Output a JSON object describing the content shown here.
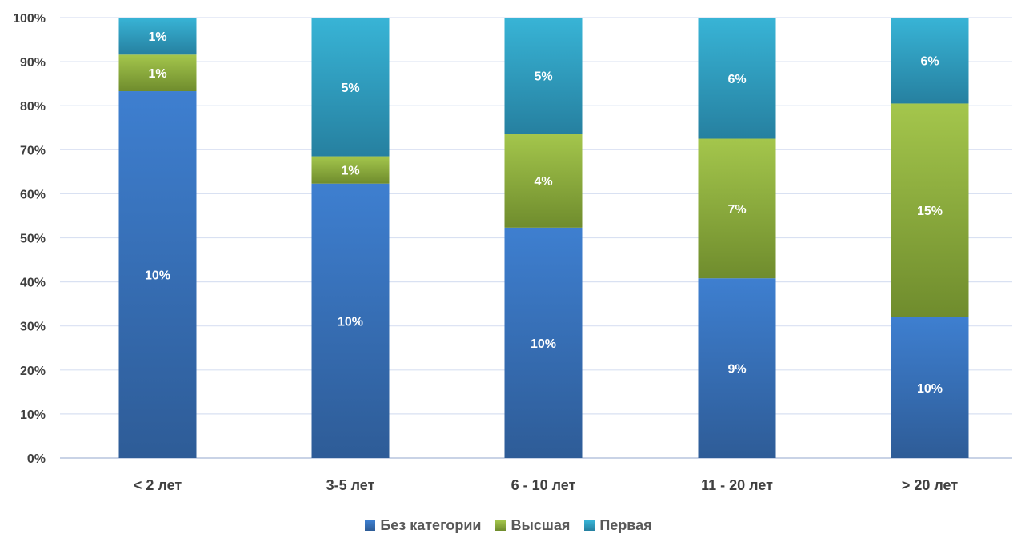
{
  "chart_data": {
    "type": "bar",
    "stacked": true,
    "percent_stacked": true,
    "categories": [
      "< 2 лет",
      "3-5 лет",
      "6 - 10 лет",
      "11 - 20 лет",
      "> 20 лет"
    ],
    "series": [
      {
        "name": "Без категории",
        "color_top": "#3E7FD0",
        "color_bottom": "#2E5C97",
        "shares": [
          0.833,
          0.623,
          0.523,
          0.408,
          0.32
        ],
        "labels": [
          "10%",
          "10%",
          "10%",
          "9%",
          "10%"
        ]
      },
      {
        "name": "Высшая",
        "color_top": "#A4C64C",
        "color_bottom": "#6F8C2D",
        "shares": [
          0.083,
          0.062,
          0.213,
          0.317,
          0.485
        ],
        "labels": [
          "1%",
          "1%",
          "4%",
          "7%",
          "15%"
        ]
      },
      {
        "name": "Первая",
        "color_top": "#38B4D6",
        "color_bottom": "#2680A0",
        "shares": [
          0.084,
          0.315,
          0.264,
          0.275,
          0.195
        ],
        "labels": [
          "1%",
          "5%",
          "5%",
          "6%",
          "6%"
        ]
      }
    ],
    "y_ticks": [
      "0%",
      "10%",
      "20%",
      "30%",
      "40%",
      "50%",
      "60%",
      "70%",
      "80%",
      "90%",
      "100%"
    ],
    "ylim": [
      0,
      100
    ],
    "grid": true,
    "legend_position": "bottom",
    "title": "",
    "xlabel": "",
    "ylabel": ""
  }
}
